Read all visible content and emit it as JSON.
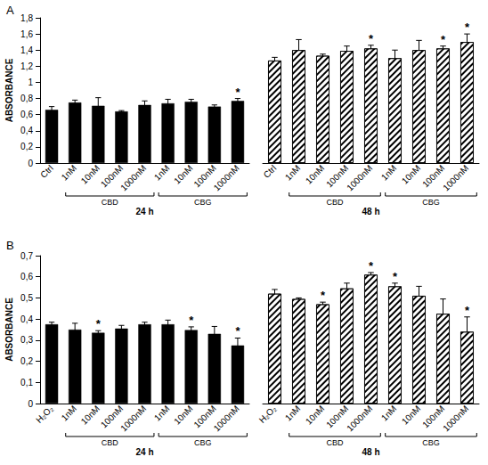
{
  "chart_data": [
    {
      "type": "bar",
      "title": "A",
      "y_label": "ABSORBANCE",
      "ylim": [
        0,
        1.8
      ],
      "yticks": [
        0,
        {
          "value": 0.2,
          "label": "0,2"
        },
        {
          "value": 0.4,
          "label": "0,4"
        },
        {
          "value": 0.6,
          "label": "0,6"
        },
        {
          "value": 0.8,
          "label": "0,8"
        },
        1,
        {
          "value": 1.2,
          "label": "1,2"
        },
        {
          "value": 1.4,
          "label": "1,4"
        },
        {
          "value": 1.6,
          "label": "1,6"
        },
        {
          "value": 1.8,
          "label": "1,8"
        }
      ],
      "grid": false,
      "categories": [
        "Ctrl",
        "1nM",
        "10nM",
        "100nM",
        "1000nM",
        "1nM",
        "10nM",
        "100nM",
        "1000nM"
      ],
      "category_groups": [
        null,
        "CBD",
        "CBD",
        "CBD",
        "CBD",
        "CBG",
        "CBG",
        "CBG",
        "CBG"
      ],
      "series": [
        {
          "name": "24 h",
          "color": "#000000",
          "values": [
            0.66,
            0.75,
            0.71,
            0.64,
            0.72,
            0.74,
            0.76,
            0.7,
            0.77
          ],
          "errors": [
            0.04,
            0.03,
            0.1,
            0.01,
            0.05,
            0.05,
            0.03,
            0.02,
            0.03
          ],
          "annotations": [
            null,
            null,
            null,
            null,
            null,
            null,
            null,
            null,
            "*"
          ]
        },
        {
          "name": "48 h",
          "color": "#000000",
          "values": [
            1.27,
            1.4,
            1.33,
            1.39,
            1.42,
            1.3,
            1.4,
            1.42,
            1.5
          ],
          "errors": [
            0.04,
            0.13,
            0.02,
            0.06,
            0.04,
            0.1,
            0.12,
            0.03,
            0.1
          ],
          "annotations": [
            null,
            null,
            null,
            null,
            "*",
            null,
            null,
            "*",
            "*"
          ]
        }
      ]
    },
    {
      "type": "bar",
      "title": "B",
      "y_label": "ABSORBANCE",
      "ylim": [
        0,
        0.7
      ],
      "yticks": [
        0,
        {
          "value": 0.1,
          "label": "0,1"
        },
        {
          "value": 0.2,
          "label": "0,2"
        },
        {
          "value": 0.3,
          "label": "0,3"
        },
        {
          "value": 0.4,
          "label": "0,4"
        },
        {
          "value": 0.5,
          "label": "0,5"
        },
        {
          "value": 0.6,
          "label": "0,6"
        },
        {
          "value": 0.7,
          "label": "0,7"
        }
      ],
      "grid": false,
      "categories": [
        "H₂O₂",
        "1nM",
        "10nM",
        "100nM",
        "1000nM",
        "1nM",
        "10nM",
        "100nM",
        "1000nM"
      ],
      "category_groups": [
        null,
        "CBD",
        "CBD",
        "CBD",
        "CBD",
        "CBG",
        "CBG",
        "CBG",
        "CBG"
      ],
      "series": [
        {
          "name": "24 h",
          "color": "#000000",
          "values": [
            0.375,
            0.35,
            0.335,
            0.355,
            0.375,
            0.375,
            0.348,
            0.33,
            0.275
          ],
          "errors": [
            0.01,
            0.03,
            0.01,
            0.015,
            0.01,
            0.02,
            0.015,
            0.035,
            0.035
          ],
          "annotations": [
            null,
            null,
            "*",
            null,
            null,
            null,
            "*",
            null,
            "*"
          ]
        },
        {
          "name": "48 h",
          "color": "#000000",
          "values": [
            0.52,
            0.495,
            0.47,
            0.545,
            0.61,
            0.555,
            0.51,
            0.425,
            0.34
          ],
          "errors": [
            0.02,
            0.005,
            0.01,
            0.025,
            0.01,
            0.015,
            0.045,
            0.07,
            0.07
          ],
          "annotations": [
            null,
            null,
            "*",
            null,
            "*",
            "*",
            null,
            null,
            "*"
          ]
        }
      ]
    }
  ]
}
